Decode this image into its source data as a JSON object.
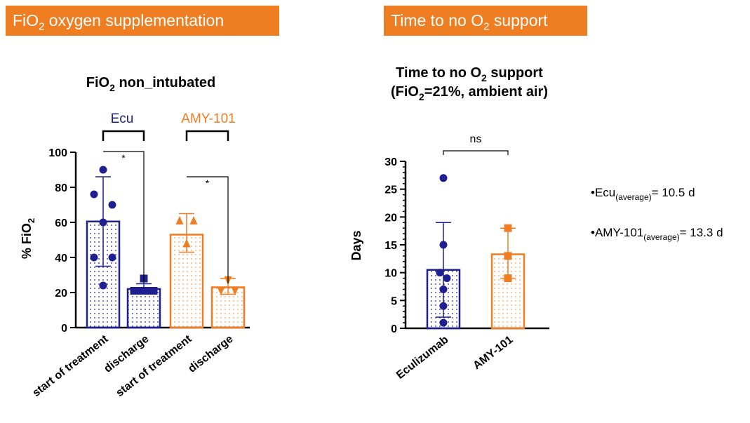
{
  "banners": {
    "left": {
      "main": "FiO",
      "sub": "2",
      "rest": " oxygen supplementation"
    },
    "right": {
      "main": "Time to no O",
      "sub": "2",
      "rest": " support"
    }
  },
  "notes": {
    "ecu": {
      "prefix": "Ecu",
      "sub": "(average)",
      "value": "= 10.5 d"
    },
    "amy": {
      "prefix": "AMY-101",
      "sub": "(average)",
      "value": "= 13.3 d"
    }
  },
  "colors": {
    "ecu": "#1f1f8f",
    "amy": "#ef7d22",
    "banner": "#ef7d22"
  },
  "chart_data": [
    {
      "type": "bar",
      "title": {
        "t1": "FiO",
        "sub": "2",
        "t2": " non_intubated"
      },
      "ylabel": {
        "main": "% FiO",
        "sub": "2"
      },
      "ylim": [
        0,
        100
      ],
      "yticks": [
        "0",
        "20",
        "40",
        "60",
        "80",
        "100"
      ],
      "group_labels": [
        "Ecu",
        "AMY-101"
      ],
      "categories": [
        "start of treatment",
        "discharge",
        "start of treatment",
        "discharge"
      ],
      "bars": [
        {
          "group": "Ecu",
          "value": 60.5,
          "err": [
            35,
            86
          ],
          "marker": "circle",
          "points": [
            90,
            76,
            70,
            60,
            40,
            40,
            24
          ]
        },
        {
          "group": "Ecu",
          "value": 22,
          "err": [
            20,
            25
          ],
          "marker": "square",
          "points": [
            28,
            21,
            21,
            21,
            21,
            21,
            21
          ]
        },
        {
          "group": "AMY-101",
          "value": 53,
          "err": [
            43,
            65
          ],
          "marker": "triangle-up",
          "points": [
            61,
            61,
            48
          ]
        },
        {
          "group": "AMY-101",
          "value": 23,
          "err": [
            19,
            28
          ],
          "marker": "triangle-down",
          "points": [
            27,
            21,
            21
          ]
        }
      ],
      "significance": [
        {
          "from": 0,
          "to": 1,
          "label": "*"
        },
        {
          "from": 2,
          "to": 3,
          "label": "*"
        }
      ]
    },
    {
      "type": "bar",
      "title": {
        "line1a": "Time to no O",
        "line1sub": "2",
        "line1b": " support",
        "line2a": "(FiO",
        "line2sub": "2",
        "line2b": "=21%, ambient air)"
      },
      "ylabel": "Days",
      "ylim": [
        0,
        30
      ],
      "yticks": [
        "0",
        "5",
        "10",
        "15",
        "20",
        "25",
        "30"
      ],
      "categories": [
        "Eculizumab",
        "AMY-101"
      ],
      "bars": [
        {
          "value": 10.5,
          "err": [
            2,
            19
          ],
          "marker": "circle",
          "points": [
            27,
            15,
            10,
            9,
            7,
            4,
            1
          ]
        },
        {
          "value": 13.3,
          "err": [
            9,
            18
          ],
          "marker": "square",
          "points": [
            18,
            13,
            9
          ]
        }
      ],
      "significance": [
        {
          "from": 0,
          "to": 1,
          "label": "ns"
        }
      ]
    }
  ]
}
